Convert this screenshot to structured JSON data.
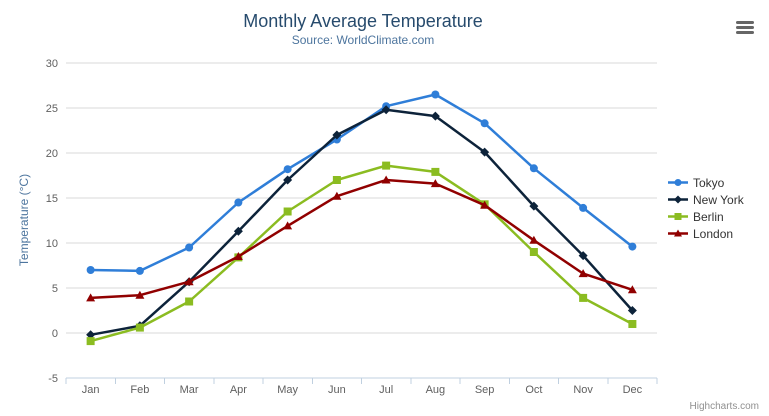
{
  "chart_data": {
    "type": "line",
    "title": "Monthly Average Temperature",
    "subtitle": "Source: WorldClimate.com",
    "ylabel": "Temperature (°C)",
    "xlabel": "",
    "categories": [
      "Jan",
      "Feb",
      "Mar",
      "Apr",
      "May",
      "Jun",
      "Jul",
      "Aug",
      "Sep",
      "Oct",
      "Nov",
      "Dec"
    ],
    "ylim": [
      -5,
      30
    ],
    "ytick_step": 5,
    "grid": true,
    "legend_position": "right",
    "series": [
      {
        "name": "Tokyo",
        "color": "#2f7ed8",
        "marker": "circle",
        "values": [
          7.0,
          6.9,
          9.5,
          14.5,
          18.2,
          21.5,
          25.2,
          26.5,
          23.3,
          18.3,
          13.9,
          9.6
        ]
      },
      {
        "name": "New York",
        "color": "#0d233a",
        "marker": "diamond",
        "values": [
          -0.2,
          0.8,
          5.7,
          11.3,
          17.0,
          22.0,
          24.8,
          24.1,
          20.1,
          14.1,
          8.6,
          2.5
        ]
      },
      {
        "name": "Berlin",
        "color": "#8bbc21",
        "marker": "square",
        "values": [
          -0.9,
          0.6,
          3.5,
          8.4,
          13.5,
          17.0,
          18.6,
          17.9,
          14.3,
          9.0,
          3.9,
          1.0
        ]
      },
      {
        "name": "London",
        "color": "#910000",
        "marker": "triangle",
        "values": [
          3.9,
          4.2,
          5.7,
          8.5,
          11.9,
          15.2,
          17.0,
          16.6,
          14.2,
          10.3,
          6.6,
          4.8
        ]
      }
    ],
    "axis_line_color": "#c0d0e0",
    "grid_color": "#d8d8d8",
    "tick_label_color": "#606060",
    "credits": "Highcharts.com"
  }
}
